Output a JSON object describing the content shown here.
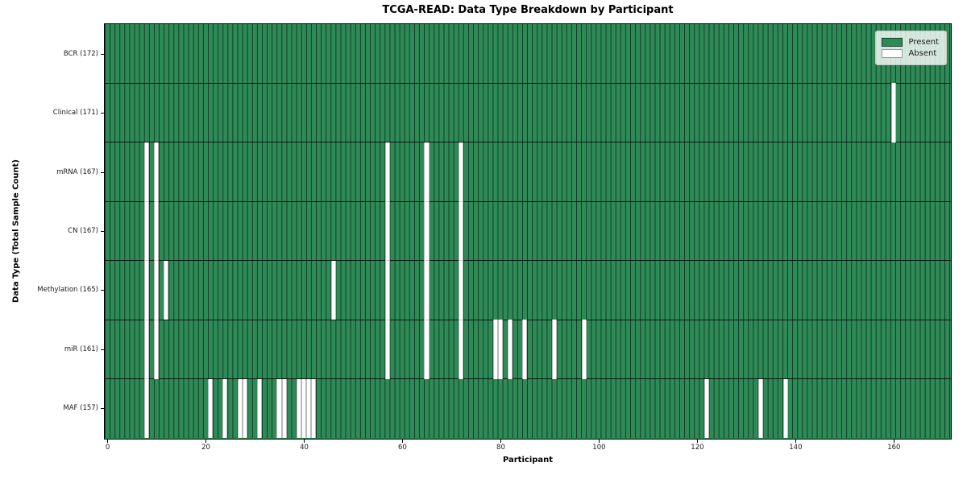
{
  "title": "TCGA-READ: Data Type Breakdown by Participant",
  "chart_data": {
    "type": "heatmap",
    "title": "TCGA-READ: Data Type Breakdown by Participant",
    "xlabel": "Participant",
    "ylabel": "Data Type (Total Sample Count)",
    "n_participants": 172,
    "x_ticks": [
      0,
      20,
      40,
      60,
      80,
      100,
      120,
      140,
      160
    ],
    "grid": "cell-edges",
    "legend": {
      "position": "upper right",
      "entries": [
        {
          "label": "Present",
          "color": "#2e8b57"
        },
        {
          "label": "Absent",
          "color": "#ffffff"
        }
      ]
    },
    "rows": [
      {
        "label": "BCR (172)",
        "name": "BCR",
        "total_samples": 172,
        "absent_participants": []
      },
      {
        "label": "Clinical (171)",
        "name": "Clinical",
        "total_samples": 171,
        "absent_participants": [
          160
        ]
      },
      {
        "label": "mRNA (167)",
        "name": "mRNA",
        "total_samples": 167,
        "absent_participants": [
          8,
          10,
          57,
          65,
          72
        ]
      },
      {
        "label": "CN (167)",
        "name": "CN",
        "total_samples": 167,
        "absent_participants": [
          8,
          10,
          57,
          65,
          72
        ]
      },
      {
        "label": "Methylation (165)",
        "name": "Methylation",
        "total_samples": 165,
        "absent_participants": [
          8,
          10,
          12,
          46,
          57,
          65,
          72
        ]
      },
      {
        "label": "miR (161)",
        "name": "miR",
        "total_samples": 161,
        "absent_participants": [
          8,
          10,
          57,
          65,
          72,
          79,
          80,
          82,
          85,
          91,
          97
        ]
      },
      {
        "label": "MAF (157)",
        "name": "MAF",
        "total_samples": 157,
        "absent_participants": [
          8,
          21,
          24,
          27,
          28,
          31,
          35,
          36,
          39,
          40,
          41,
          42,
          122,
          133,
          138
        ]
      }
    ],
    "colors": {
      "present": "#2e8b57",
      "absent": "#ffffff",
      "cell_edge": "rgba(0,0,0,0.6)",
      "row_divider": "rgba(0,0,0,0.8)",
      "plot_border": "#000000",
      "figure_background": "#ffffff"
    }
  }
}
